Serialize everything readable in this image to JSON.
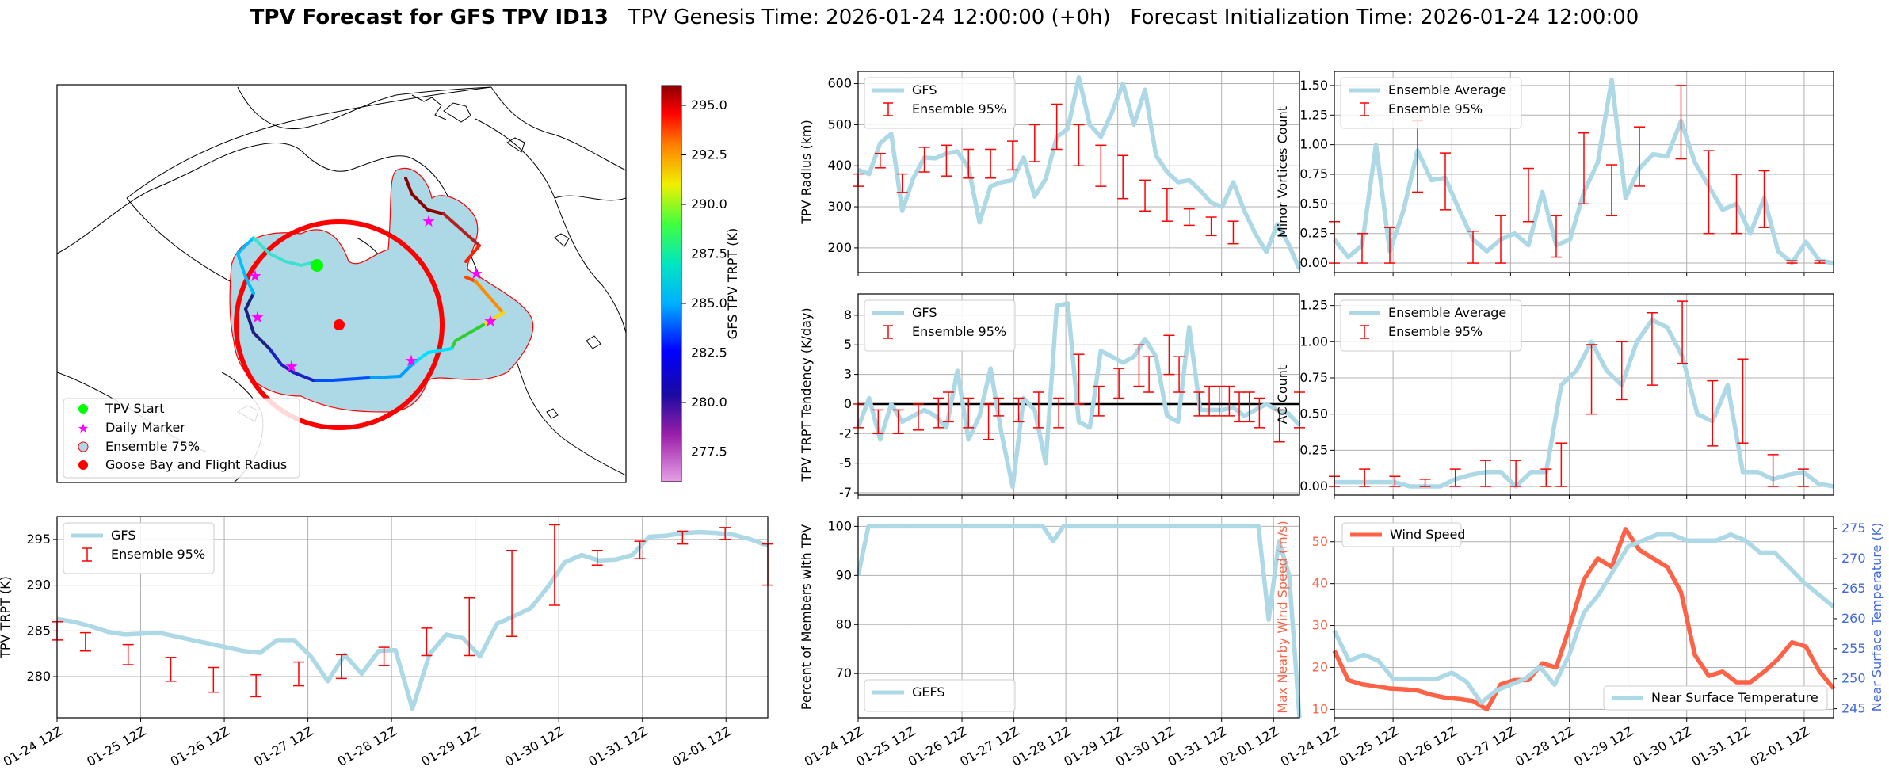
{
  "suptitle": {
    "bold": "TPV Forecast for GFS TPV ID13",
    "rest": "   TPV Genesis Time: 2026-01-24 12:00:00 (+0h)   Forecast Initialization Time: 2026-01-24 12:00:00"
  },
  "x_ticks": [
    "01-24 12Z",
    "01-25 12Z",
    "01-26 12Z",
    "01-27 12Z",
    "01-28 12Z",
    "01-29 12Z",
    "01-30 12Z",
    "01-31 12Z",
    "02-01 12Z"
  ],
  "colors": {
    "line": "#add8e6",
    "err": "#ff0000",
    "wind": "#ff6347",
    "temp_axis": "#4169e1",
    "grid": "#b0b0b0"
  },
  "map": {
    "legend": [
      "TPV Start",
      "Daily Marker",
      "Ensemble 75%",
      "Goose Bay and Flight Radius"
    ],
    "colorbar": {
      "label": "GFS TPV TRPT (K)",
      "ticks": [
        277.5,
        280.0,
        282.5,
        285.0,
        287.5,
        290.0,
        292.5,
        295.0
      ],
      "min": 276,
      "max": 296
    }
  },
  "chart_data": [
    {
      "id": "trpt",
      "type": "line",
      "ylabel": "TPV TRPT (K)",
      "ylim": [
        275.5,
        297.5
      ],
      "yticks": [
        280,
        285,
        290,
        295
      ],
      "series": [
        {
          "name": "GFS",
          "values": [
            286.3,
            286.0,
            285.5,
            284.9,
            284.6,
            284.7,
            284.8,
            284.4,
            284.0,
            283.6,
            283.2,
            282.8,
            282.6,
            284.0,
            284.0,
            282.2,
            279.5,
            282.4,
            280.3,
            282.8,
            282.9,
            276.5,
            282.4,
            284.6,
            284.2,
            282.2,
            285.8,
            286.6,
            287.5,
            289.8,
            292.5,
            293.3,
            292.7,
            292.8,
            293.3,
            295.3,
            295.4,
            295.7,
            295.8,
            295.7,
            295.5,
            295.0,
            294.3
          ]
        }
      ],
      "errorbars": [
        {
          "i": 0,
          "lo": 284,
          "hi": 286
        },
        {
          "i": 2,
          "lo": 282.8,
          "hi": 284.8
        },
        {
          "i": 5,
          "lo": 281.3,
          "hi": 283.5
        },
        {
          "i": 8,
          "lo": 279.5,
          "hi": 282.1
        },
        {
          "i": 11,
          "lo": 278.3,
          "hi": 281
        },
        {
          "i": 14,
          "lo": 277.8,
          "hi": 280.2
        },
        {
          "i": 17,
          "lo": 279,
          "hi": 281.6
        },
        {
          "i": 20,
          "lo": 279.8,
          "hi": 282.4
        },
        {
          "i": 23,
          "lo": 281.2,
          "hi": 283.2
        },
        {
          "i": 26,
          "lo": 282.3,
          "hi": 285.3
        },
        {
          "i": 29,
          "lo": 282.3,
          "hi": 288.6
        },
        {
          "i": 32,
          "lo": 284.4,
          "hi": 293.8
        },
        {
          "i": 35,
          "lo": 287.8,
          "hi": 296.6
        },
        {
          "i": 38,
          "lo": 292.2,
          "hi": 293.8
        },
        {
          "i": 41,
          "lo": 292.9,
          "hi": 294.8
        },
        {
          "i": 44,
          "lo": 294.5,
          "hi": 295.9
        },
        {
          "i": 47,
          "lo": 295,
          "hi": 296.3
        },
        {
          "i": 50,
          "lo": 290,
          "hi": 294.5
        }
      ],
      "legend": [
        "GFS",
        "Ensemble 95%"
      ]
    },
    {
      "id": "radius",
      "type": "line",
      "ylabel": "TPV Radius (km)",
      "ylim": [
        140,
        630
      ],
      "yticks": [
        200,
        300,
        400,
        500,
        600
      ],
      "series": [
        {
          "name": "GFS",
          "values": [
            390,
            380,
            455,
            478,
            290,
            370,
            420,
            418,
            430,
            435,
            395,
            262,
            350,
            360,
            365,
            420,
            325,
            368,
            470,
            490,
            615,
            500,
            470,
            530,
            600,
            500,
            585,
            425,
            385,
            360,
            365,
            340,
            310,
            300,
            360,
            290,
            235,
            190,
            258,
            210,
            148
          ]
        }
      ],
      "errorbars": [
        {
          "i": 0,
          "lo": 350,
          "hi": 380
        },
        {
          "i": 2,
          "lo": 395,
          "hi": 430
        },
        {
          "i": 4,
          "lo": 335,
          "hi": 380
        },
        {
          "i": 6,
          "lo": 385,
          "hi": 445
        },
        {
          "i": 8,
          "lo": 375,
          "hi": 450
        },
        {
          "i": 10,
          "lo": 370,
          "hi": 440
        },
        {
          "i": 12,
          "lo": 370,
          "hi": 440
        },
        {
          "i": 14,
          "lo": 390,
          "hi": 460
        },
        {
          "i": 16,
          "lo": 410,
          "hi": 500
        },
        {
          "i": 18,
          "lo": 440,
          "hi": 550
        },
        {
          "i": 20,
          "lo": 400,
          "hi": 500
        },
        {
          "i": 22,
          "lo": 350,
          "hi": 450
        },
        {
          "i": 24,
          "lo": 320,
          "hi": 425
        },
        {
          "i": 26,
          "lo": 290,
          "hi": 365
        },
        {
          "i": 28,
          "lo": 265,
          "hi": 345
        },
        {
          "i": 30,
          "lo": 255,
          "hi": 295
        },
        {
          "i": 32,
          "lo": 230,
          "hi": 275
        },
        {
          "i": 34,
          "lo": 210,
          "hi": 265
        }
      ],
      "legend": [
        "GFS",
        "Ensemble 95%"
      ]
    },
    {
      "id": "minor",
      "type": "line",
      "ylabel": "Minor Vortices Count",
      "ylim": [
        -0.08,
        1.62
      ],
      "yticks": [
        0.0,
        0.25,
        0.5,
        0.75,
        1.0,
        1.25,
        1.5
      ],
      "series": [
        {
          "name": "Ensemble Average",
          "values": [
            0.2,
            0.05,
            0.15,
            1.0,
            0.1,
            0.45,
            0.95,
            0.7,
            0.72,
            0.45,
            0.2,
            0.1,
            0.2,
            0.25,
            0.15,
            0.6,
            0.15,
            0.2,
            0.6,
            0.85,
            1.55,
            0.55,
            0.8,
            0.92,
            0.9,
            1.2,
            0.85,
            0.65,
            0.45,
            0.5,
            0.25,
            0.55,
            0.1,
            0.0,
            0.18,
            0.02,
            0.0
          ]
        }
      ],
      "errorbars": [
        {
          "i": 0,
          "lo": 0.0,
          "hi": 0.35
        },
        {
          "i": 2,
          "lo": 0.0,
          "hi": 0.25
        },
        {
          "i": 4,
          "lo": 0.0,
          "hi": 0.3
        },
        {
          "i": 6,
          "lo": 0.6,
          "hi": 1.2
        },
        {
          "i": 8,
          "lo": 0.45,
          "hi": 0.93
        },
        {
          "i": 10,
          "lo": 0.0,
          "hi": 0.27
        },
        {
          "i": 12,
          "lo": 0.0,
          "hi": 0.4
        },
        {
          "i": 14,
          "lo": 0.35,
          "hi": 0.8
        },
        {
          "i": 16,
          "lo": 0.05,
          "hi": 0.4
        },
        {
          "i": 18,
          "lo": 0.5,
          "hi": 1.1
        },
        {
          "i": 20,
          "lo": 0.4,
          "hi": 0.83
        },
        {
          "i": 22,
          "lo": 0.65,
          "hi": 1.15
        },
        {
          "i": 25,
          "lo": 0.88,
          "hi": 1.5
        },
        {
          "i": 27,
          "lo": 0.25,
          "hi": 0.95
        },
        {
          "i": 29,
          "lo": 0.25,
          "hi": 0.75
        },
        {
          "i": 31,
          "lo": 0.3,
          "hi": 0.78
        },
        {
          "i": 33,
          "lo": 0.0,
          "hi": 0.02
        },
        {
          "i": 35,
          "lo": 0.0,
          "hi": 0.02
        }
      ],
      "legend": [
        "Ensemble Average",
        "Ensemble 95%"
      ]
    },
    {
      "id": "tendency",
      "type": "line",
      "ylabel": "TPV TRPT Tendency (K/day)",
      "ylim": [
        -7.7,
        9.3
      ],
      "yticks": [
        -7.5,
        -5.0,
        -2.5,
        0.0,
        2.5,
        5.0,
        7.5
      ],
      "hline": 0,
      "series": [
        {
          "name": "GFS",
          "values": [
            -2.0,
            0.5,
            -3.0,
            0.0,
            -1.5,
            -1.0,
            -0.5,
            -1.0,
            -2.0,
            2.8,
            -3.0,
            -1.0,
            3.0,
            -2.5,
            -7.0,
            0.5,
            -0.5,
            -5.0,
            8.3,
            8.5,
            -1.5,
            -2.0,
            4.5,
            4.0,
            3.5,
            4.0,
            5.5,
            4.0,
            -1.0,
            -1.5,
            6.5,
            -0.5,
            -0.5,
            -0.5,
            -0.3,
            -1.0,
            -0.5,
            0.0,
            -0.5,
            -0.8,
            -1.8
          ]
        }
      ],
      "errorbars": [
        {
          "i": 0,
          "lo": -2.0,
          "hi": 0.0
        },
        {
          "i": 2,
          "lo": -2.5,
          "hi": -0.5
        },
        {
          "i": 4,
          "lo": -2.5,
          "hi": -0.5
        },
        {
          "i": 6,
          "lo": -2.2,
          "hi": 0.0
        },
        {
          "i": 8,
          "lo": -2.0,
          "hi": 0.5
        },
        {
          "i": 9,
          "lo": -1.5,
          "hi": 1.0
        },
        {
          "i": 11,
          "lo": -2.0,
          "hi": 0.5
        },
        {
          "i": 13,
          "lo": -3.0,
          "hi": 0.0
        },
        {
          "i": 14,
          "lo": -1.0,
          "hi": 0.5
        },
        {
          "i": 16,
          "lo": -1.5,
          "hi": 0.5
        },
        {
          "i": 18,
          "lo": -2.0,
          "hi": 1.0
        },
        {
          "i": 20,
          "lo": -2.0,
          "hi": 0.5
        },
        {
          "i": 22,
          "lo": 0.0,
          "hi": 4.2
        },
        {
          "i": 24,
          "lo": -1.0,
          "hi": 1.5
        },
        {
          "i": 26,
          "lo": 0.5,
          "hi": 3.0
        },
        {
          "i": 28,
          "lo": 1.5,
          "hi": 5.0
        },
        {
          "i": 29,
          "lo": 1.0,
          "hi": 4.0
        },
        {
          "i": 31,
          "lo": 2.5,
          "hi": 5.8
        },
        {
          "i": 32,
          "lo": 1.0,
          "hi": 4.0
        },
        {
          "i": 34,
          "lo": -1.0,
          "hi": 1.0
        },
        {
          "i": 35,
          "lo": -1.0,
          "hi": 1.5
        },
        {
          "i": 36,
          "lo": -1.0,
          "hi": 1.5
        },
        {
          "i": 37,
          "lo": -1.0,
          "hi": 1.5
        },
        {
          "i": 38,
          "lo": -1.5,
          "hi": 1.0
        },
        {
          "i": 39,
          "lo": -1.5,
          "hi": 1.0
        },
        {
          "i": 40,
          "lo": -2.0,
          "hi": 0.5
        },
        {
          "i": 42,
          "lo": -3.2,
          "hi": -0.5
        },
        {
          "i": 44,
          "lo": -2.0,
          "hi": 1.0
        }
      ],
      "legend": [
        "GFS",
        "Ensemble 95%"
      ]
    },
    {
      "id": "ac",
      "type": "line",
      "ylabel": "AC Count",
      "ylim": [
        -0.06,
        1.33
      ],
      "yticks": [
        0.0,
        0.25,
        0.5,
        0.75,
        1.0,
        1.25
      ],
      "series": [
        {
          "name": "Ensemble Average",
          "values": [
            0.03,
            0.03,
            0.03,
            0.03,
            0.03,
            0.0,
            0.0,
            0.0,
            0.05,
            0.08,
            0.1,
            0.1,
            0.0,
            0.1,
            0.1,
            0.7,
            0.8,
            1.0,
            0.8,
            0.7,
            1.0,
            1.15,
            1.1,
            0.9,
            0.5,
            0.45,
            0.7,
            0.1,
            0.1,
            0.05,
            0.08,
            0.1,
            0.02,
            0.0
          ]
        }
      ],
      "errorbars": [
        {
          "i": 0,
          "lo": 0.0,
          "hi": 0.07
        },
        {
          "i": 2,
          "lo": 0.0,
          "hi": 0.12
        },
        {
          "i": 4,
          "lo": 0.0,
          "hi": 0.07
        },
        {
          "i": 6,
          "lo": 0.0,
          "hi": 0.05
        },
        {
          "i": 8,
          "lo": 0.0,
          "hi": 0.12
        },
        {
          "i": 10,
          "lo": 0.0,
          "hi": 0.18
        },
        {
          "i": 12,
          "lo": 0.0,
          "hi": 0.18
        },
        {
          "i": 14,
          "lo": 0.0,
          "hi": 0.12
        },
        {
          "i": 15,
          "lo": 0.0,
          "hi": 0.3
        },
        {
          "i": 17,
          "lo": 0.5,
          "hi": 0.98
        },
        {
          "i": 19,
          "lo": 0.6,
          "hi": 1.0
        },
        {
          "i": 21,
          "lo": 0.7,
          "hi": 1.2
        },
        {
          "i": 23,
          "lo": 0.85,
          "hi": 1.28
        },
        {
          "i": 25,
          "lo": 0.28,
          "hi": 0.73
        },
        {
          "i": 27,
          "lo": 0.3,
          "hi": 0.88
        },
        {
          "i": 29,
          "lo": 0.0,
          "hi": 0.22
        },
        {
          "i": 31,
          "lo": 0.0,
          "hi": 0.12
        }
      ],
      "legend": [
        "Ensemble Average",
        "Ensemble 95%"
      ]
    },
    {
      "id": "percent",
      "type": "line",
      "ylabel": "Percent of Members with TPV",
      "ylim": [
        61,
        102
      ],
      "yticks": [
        70,
        80,
        90,
        100
      ],
      "series": [
        {
          "name": "GEFS",
          "values": [
            90,
            100,
            100,
            100,
            100,
            100,
            100,
            100,
            100,
            100,
            100,
            100,
            100,
            100,
            100,
            100,
            100,
            100,
            100,
            97,
            100,
            100,
            100,
            100,
            100,
            100,
            100,
            100,
            100,
            100,
            100,
            100,
            100,
            100,
            100,
            100,
            100,
            100,
            100,
            100,
            81,
            97,
            90,
            61
          ]
        }
      ],
      "legend": [
        "GEFS"
      ]
    },
    {
      "id": "wind_temp",
      "type": "line",
      "ylabel": "Max Nearby Wind Speed (m/s)",
      "ylim": [
        8,
        56
      ],
      "yticks": [
        10,
        20,
        30,
        40,
        50
      ],
      "y2label": "Near Surface Temperature (K)",
      "y2lim": [
        243.5,
        277
      ],
      "y2ticks": [
        245,
        250,
        255,
        260,
        265,
        270,
        275
      ],
      "series": [
        {
          "name": "Wind Speed",
          "axis": "left",
          "values": [
            24,
            17,
            16,
            15.5,
            15,
            14.8,
            14.5,
            13.5,
            12.8,
            12.5,
            12,
            10,
            16,
            17,
            17,
            21,
            20,
            30,
            41,
            46,
            44,
            53,
            48,
            46,
            44,
            38,
            23,
            18,
            19,
            16.5,
            16.5,
            19,
            22,
            26,
            25,
            19,
            15
          ]
        },
        {
          "name": "Near Surface Temperature",
          "axis": "right",
          "values": [
            258,
            253,
            254,
            253,
            250,
            250,
            250,
            250,
            251,
            249.5,
            246,
            248,
            249,
            250,
            252,
            249,
            254,
            261,
            264,
            268,
            272,
            273,
            274,
            274,
            273,
            273,
            273,
            274,
            273,
            271,
            271,
            268.5,
            266,
            264,
            262
          ]
        }
      ],
      "legend": [
        "Wind Speed",
        "Near Surface Temperature"
      ]
    }
  ]
}
